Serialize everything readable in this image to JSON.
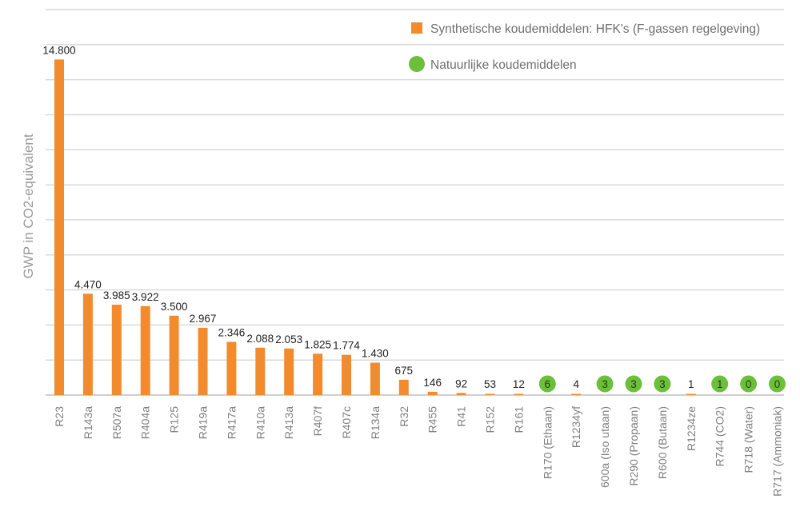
{
  "chart_data": {
    "type": "bar",
    "ylabel": "GWP in CO2-equivalent",
    "xlabel": "",
    "ylim": [
      0,
      17000
    ],
    "grid": true,
    "legend_placement": "top-right",
    "colors": {
      "synthetic": "#f28a2e",
      "natural": "#6cbf3a",
      "grid": "#d9d9d9"
    },
    "series": [
      {
        "name": "Synthetische koudemiddelen: HFK's (F-gassen regelgeving)",
        "marker": "bar"
      },
      {
        "name": "Natuurlijke koudemiddelen",
        "marker": "circle"
      }
    ],
    "points": [
      {
        "category": "R23",
        "value": 14800,
        "label": "14.800",
        "kind": "synthetic"
      },
      {
        "category": "R143a",
        "value": 4470,
        "label": "4.470",
        "kind": "synthetic"
      },
      {
        "category": "R507a",
        "value": 3985,
        "label": "3.985",
        "kind": "synthetic"
      },
      {
        "category": "R404a",
        "value": 3922,
        "label": "3.922",
        "kind": "synthetic"
      },
      {
        "category": "R125",
        "value": 3500,
        "label": "3.500",
        "kind": "synthetic"
      },
      {
        "category": "R419a",
        "value": 2967,
        "label": "2.967",
        "kind": "synthetic"
      },
      {
        "category": "R417a",
        "value": 2346,
        "label": "2.346",
        "kind": "synthetic"
      },
      {
        "category": "R410a",
        "value": 2088,
        "label": "2.088",
        "kind": "synthetic"
      },
      {
        "category": "R413a",
        "value": 2053,
        "label": "2.053",
        "kind": "synthetic"
      },
      {
        "category": "R407f",
        "value": 1825,
        "label": "1.825",
        "kind": "synthetic"
      },
      {
        "category": "R407c",
        "value": 1774,
        "label": "1.774",
        "kind": "synthetic"
      },
      {
        "category": "R134a",
        "value": 1430,
        "label": "1.430",
        "kind": "synthetic"
      },
      {
        "category": "R32",
        "value": 675,
        "label": "675",
        "kind": "synthetic"
      },
      {
        "category": "R455",
        "value": 146,
        "label": "146",
        "kind": "synthetic"
      },
      {
        "category": "R41",
        "value": 92,
        "label": "92",
        "kind": "synthetic"
      },
      {
        "category": "R152",
        "value": 53,
        "label": "53",
        "kind": "synthetic"
      },
      {
        "category": "R161",
        "value": 12,
        "label": "12",
        "kind": "synthetic"
      },
      {
        "category": "R170 (Ethaan)",
        "value": 6,
        "label": "6",
        "kind": "natural"
      },
      {
        "category": "R1234yf",
        "value": 4,
        "label": "4",
        "kind": "synthetic"
      },
      {
        "category": "600a (Iso  utaan)",
        "value": 3,
        "label": "3",
        "kind": "natural"
      },
      {
        "category": "R290 (Propaan)",
        "value": 3,
        "label": "3",
        "kind": "natural"
      },
      {
        "category": "R600 (Butaan)",
        "value": 3,
        "label": "3",
        "kind": "natural"
      },
      {
        "category": "R1234ze",
        "value": 1,
        "label": "1",
        "kind": "synthetic"
      },
      {
        "category": "R744 (CO2)",
        "value": 1,
        "label": "1",
        "kind": "natural"
      },
      {
        "category": "R718 (Water)",
        "value": 0,
        "label": "0",
        "kind": "natural"
      },
      {
        "category": "R717 (Ammoniak)",
        "value": 0,
        "label": "0",
        "kind": "natural"
      }
    ]
  }
}
